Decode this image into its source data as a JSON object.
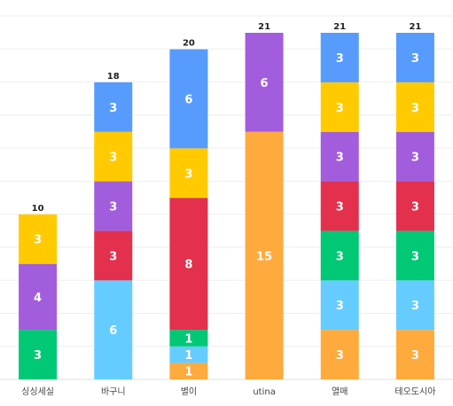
{
  "chart_data": {
    "type": "bar",
    "stacked": true,
    "categories": [
      "싱싱세실",
      "바구니",
      "별이",
      "utina",
      "열매",
      "테오도시아"
    ],
    "series": [
      {
        "values": [
          0,
          0,
          1,
          15,
          3,
          3
        ],
        "color": "#FFAA3C"
      },
      {
        "values": [
          0,
          6,
          1,
          0,
          3,
          3
        ],
        "color": "#65CCFF"
      },
      {
        "values": [
          3,
          0,
          1,
          0,
          3,
          3
        ],
        "color": "#00C875"
      },
      {
        "values": [
          0,
          3,
          8,
          0,
          3,
          3
        ],
        "color": "#E2304D"
      },
      {
        "values": [
          4,
          3,
          0,
          6,
          3,
          3
        ],
        "color": "#A25DDC"
      },
      {
        "values": [
          3,
          3,
          3,
          0,
          3,
          3
        ],
        "color": "#FFCB00"
      },
      {
        "values": [
          0,
          3,
          6,
          0,
          3,
          3
        ],
        "color": "#579BFC"
      }
    ],
    "totals": [
      10,
      18,
      20,
      21,
      21,
      21
    ],
    "ylim": [
      0,
      21
    ],
    "grid": true,
    "legend": "none"
  }
}
